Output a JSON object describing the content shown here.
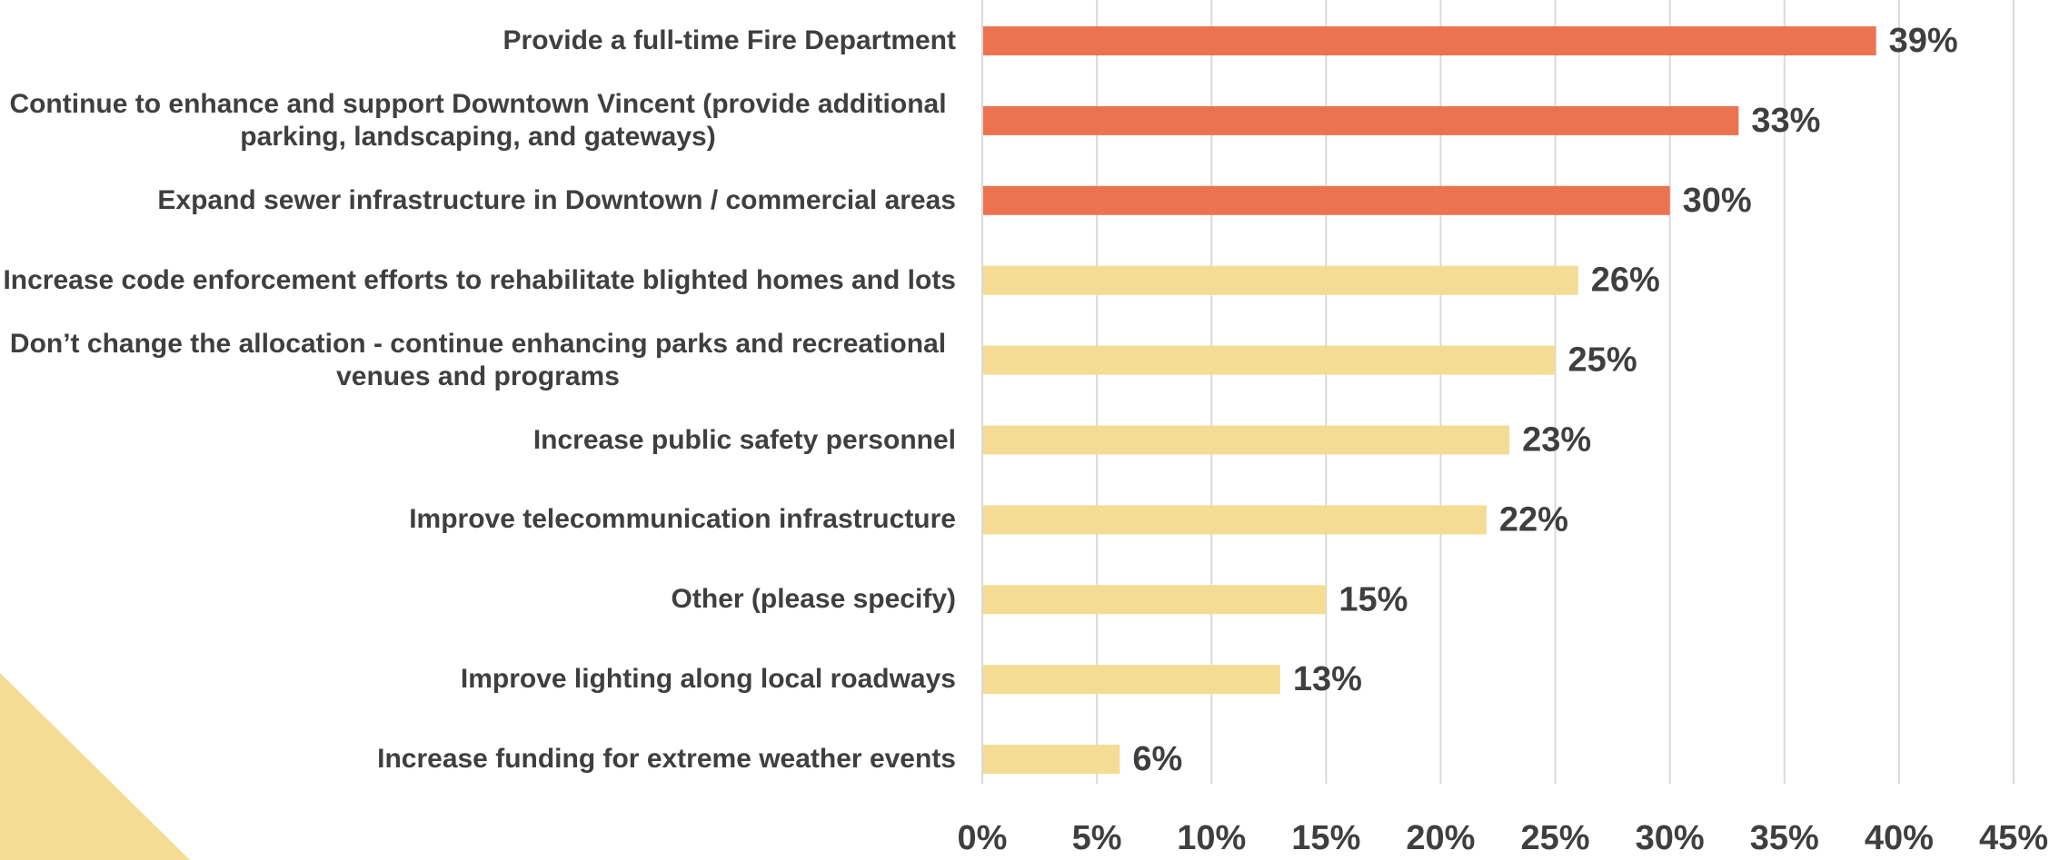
{
  "chart_data": {
    "type": "bar",
    "orientation": "horizontal",
    "categories": [
      "Provide a full-time Fire Department",
      "Continue to enhance and support Downtown Vincent (provide additional parking, landscaping, and gateways)",
      "Expand sewer infrastructure in Downtown / commercial areas",
      "Increase code enforcement efforts to rehabilitate blighted homes and lots",
      "Don’t change the allocation - continue enhancing parks and recreational venues and programs",
      "Increase public safety personnel",
      "Improve telecommunication infrastructure",
      "Other (please specify)",
      "Improve lighting along local roadways",
      "Increase funding for extreme weather events"
    ],
    "values": [
      39,
      33,
      30,
      26,
      25,
      23,
      22,
      15,
      13,
      6
    ],
    "value_labels": [
      "39%",
      "33%",
      "30%",
      "26%",
      "25%",
      "23%",
      "22%",
      "15%",
      "13%",
      "6%"
    ],
    "colors": [
      "#eb7350",
      "#eb7350",
      "#eb7350",
      "#f4dc94",
      "#f4dc94",
      "#f4dc94",
      "#f4dc94",
      "#f4dc94",
      "#f4dc94",
      "#f4dc94"
    ],
    "xlim": [
      0,
      45
    ],
    "xticks": [
      {
        "value": 0,
        "label": "0%"
      },
      {
        "value": 5,
        "label": "5%"
      },
      {
        "value": 10,
        "label": "10%"
      },
      {
        "value": 15,
        "label": "15%"
      },
      {
        "value": 20,
        "label": "20%"
      },
      {
        "value": 25,
        "label": "25%"
      },
      {
        "value": 30,
        "label": "30%"
      },
      {
        "value": 35,
        "label": "35%"
      },
      {
        "value": 40,
        "label": "40%"
      },
      {
        "value": 45,
        "label": "45%"
      }
    ],
    "grid": true
  }
}
